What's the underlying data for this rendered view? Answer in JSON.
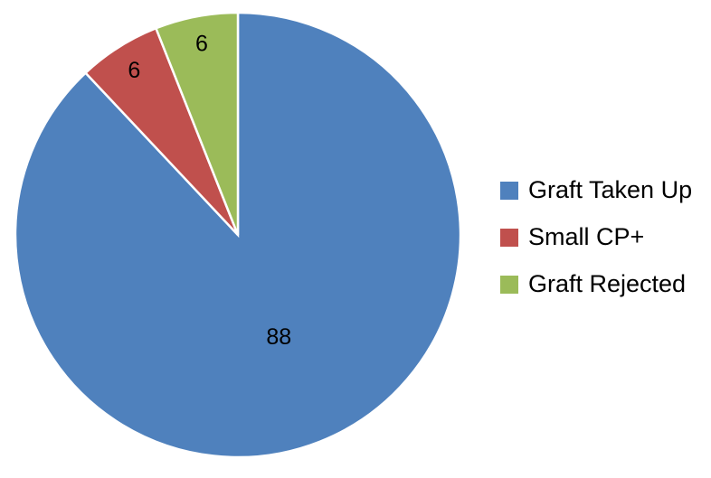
{
  "chart_data": {
    "type": "pie",
    "categories": [
      "Graft Taken Up",
      "Small CP+",
      "Graft Rejected"
    ],
    "values": [
      88,
      6,
      6
    ],
    "colors": [
      "#4f81bd",
      "#c0504d",
      "#9bbb59"
    ],
    "legend": "right"
  }
}
